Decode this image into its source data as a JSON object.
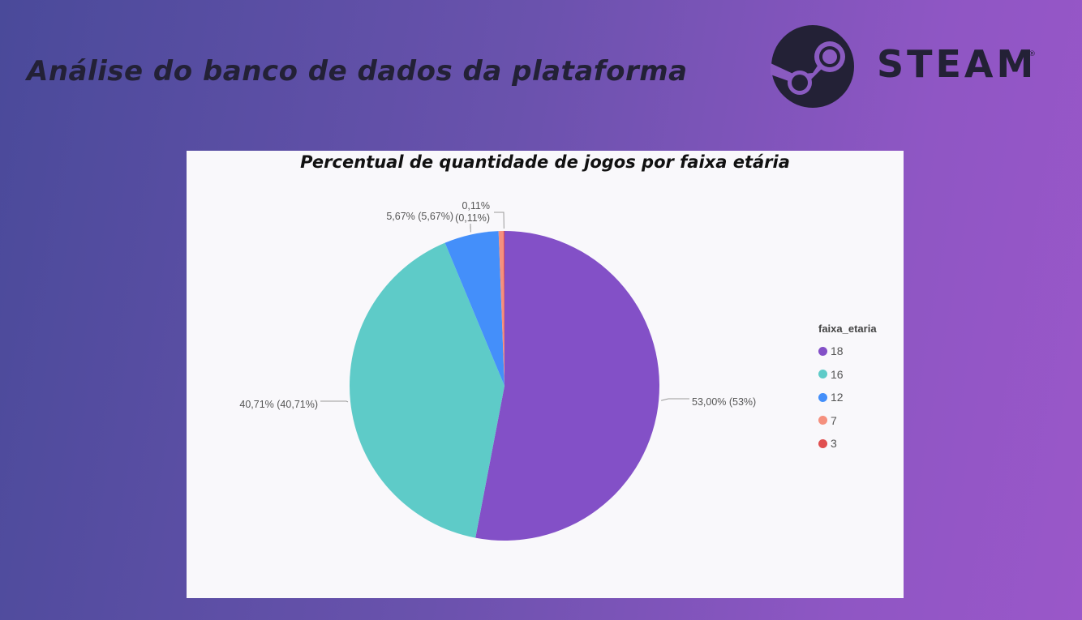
{
  "page": {
    "title": "Análise do banco de dados da plataforma",
    "logo": {
      "wordmark": "STEAM",
      "registered": "®",
      "icon": "steam-icon"
    }
  },
  "chart_data": {
    "type": "pie",
    "title": "Percentual de quantidade de jogos por faixa etária",
    "legend_title": "faixa_etaria",
    "legend_position": "right",
    "categories": [
      "18",
      "16",
      "12",
      "7",
      "3"
    ],
    "values": [
      53.0,
      40.71,
      5.67,
      0.5,
      0.11
    ],
    "colors": [
      "#8350c7",
      "#5ecbc8",
      "#448ffa",
      "#f5907e",
      "#e04f4f"
    ],
    "labels": [
      [
        "53,00% (53%)"
      ],
      [
        "40,71% (40,71%)"
      ],
      [
        "5,67% (5,67%)"
      ],
      [],
      [
        "0,11%",
        "(0,11%)"
      ]
    ]
  }
}
